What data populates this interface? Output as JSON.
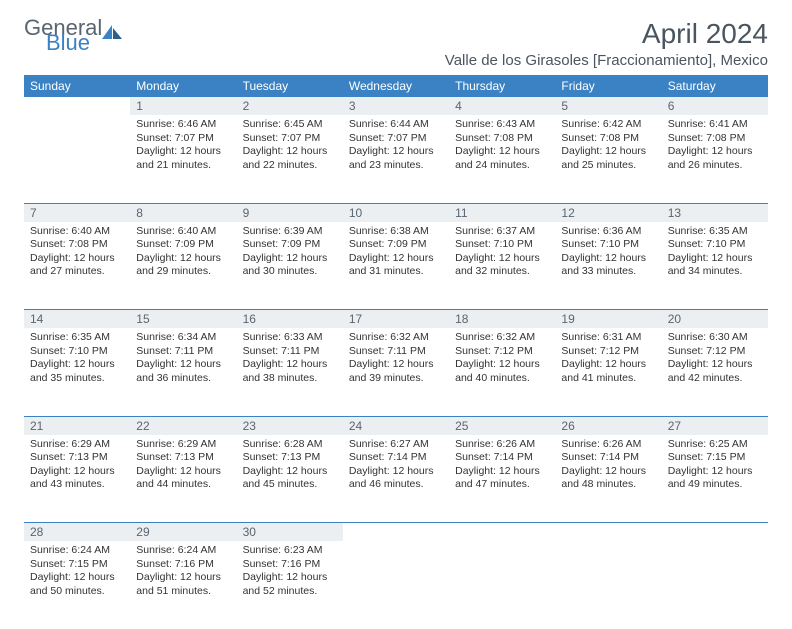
{
  "logo": {
    "text1": "General",
    "text2": "Blue"
  },
  "title": "April 2024",
  "location": "Valle de los Girasoles [Fraccionamiento], Mexico",
  "colors": {
    "header_bg": "#3b82c4",
    "header_text": "#ffffff",
    "daynum_bg": "#eceff1",
    "daynum_text": "#5a6570",
    "body_text": "#333333",
    "title_text": "#4a5560",
    "logo_gray": "#5a6570",
    "logo_blue": "#3b82c4",
    "row_border": "#3b82c4"
  },
  "typography": {
    "title_fontsize": 28,
    "location_fontsize": 15,
    "header_fontsize": 12,
    "daynum_fontsize": 12,
    "cell_fontsize": 10.5
  },
  "weekdays": [
    "Sunday",
    "Monday",
    "Tuesday",
    "Wednesday",
    "Thursday",
    "Friday",
    "Saturday"
  ],
  "weeks": [
    [
      null,
      {
        "day": "1",
        "sunrise": "Sunrise: 6:46 AM",
        "sunset": "Sunset: 7:07 PM",
        "daylight1": "Daylight: 12 hours",
        "daylight2": "and 21 minutes."
      },
      {
        "day": "2",
        "sunrise": "Sunrise: 6:45 AM",
        "sunset": "Sunset: 7:07 PM",
        "daylight1": "Daylight: 12 hours",
        "daylight2": "and 22 minutes."
      },
      {
        "day": "3",
        "sunrise": "Sunrise: 6:44 AM",
        "sunset": "Sunset: 7:07 PM",
        "daylight1": "Daylight: 12 hours",
        "daylight2": "and 23 minutes."
      },
      {
        "day": "4",
        "sunrise": "Sunrise: 6:43 AM",
        "sunset": "Sunset: 7:08 PM",
        "daylight1": "Daylight: 12 hours",
        "daylight2": "and 24 minutes."
      },
      {
        "day": "5",
        "sunrise": "Sunrise: 6:42 AM",
        "sunset": "Sunset: 7:08 PM",
        "daylight1": "Daylight: 12 hours",
        "daylight2": "and 25 minutes."
      },
      {
        "day": "6",
        "sunrise": "Sunrise: 6:41 AM",
        "sunset": "Sunset: 7:08 PM",
        "daylight1": "Daylight: 12 hours",
        "daylight2": "and 26 minutes."
      }
    ],
    [
      {
        "day": "7",
        "sunrise": "Sunrise: 6:40 AM",
        "sunset": "Sunset: 7:08 PM",
        "daylight1": "Daylight: 12 hours",
        "daylight2": "and 27 minutes."
      },
      {
        "day": "8",
        "sunrise": "Sunrise: 6:40 AM",
        "sunset": "Sunset: 7:09 PM",
        "daylight1": "Daylight: 12 hours",
        "daylight2": "and 29 minutes."
      },
      {
        "day": "9",
        "sunrise": "Sunrise: 6:39 AM",
        "sunset": "Sunset: 7:09 PM",
        "daylight1": "Daylight: 12 hours",
        "daylight2": "and 30 minutes."
      },
      {
        "day": "10",
        "sunrise": "Sunrise: 6:38 AM",
        "sunset": "Sunset: 7:09 PM",
        "daylight1": "Daylight: 12 hours",
        "daylight2": "and 31 minutes."
      },
      {
        "day": "11",
        "sunrise": "Sunrise: 6:37 AM",
        "sunset": "Sunset: 7:10 PM",
        "daylight1": "Daylight: 12 hours",
        "daylight2": "and 32 minutes."
      },
      {
        "day": "12",
        "sunrise": "Sunrise: 6:36 AM",
        "sunset": "Sunset: 7:10 PM",
        "daylight1": "Daylight: 12 hours",
        "daylight2": "and 33 minutes."
      },
      {
        "day": "13",
        "sunrise": "Sunrise: 6:35 AM",
        "sunset": "Sunset: 7:10 PM",
        "daylight1": "Daylight: 12 hours",
        "daylight2": "and 34 minutes."
      }
    ],
    [
      {
        "day": "14",
        "sunrise": "Sunrise: 6:35 AM",
        "sunset": "Sunset: 7:10 PM",
        "daylight1": "Daylight: 12 hours",
        "daylight2": "and 35 minutes."
      },
      {
        "day": "15",
        "sunrise": "Sunrise: 6:34 AM",
        "sunset": "Sunset: 7:11 PM",
        "daylight1": "Daylight: 12 hours",
        "daylight2": "and 36 minutes."
      },
      {
        "day": "16",
        "sunrise": "Sunrise: 6:33 AM",
        "sunset": "Sunset: 7:11 PM",
        "daylight1": "Daylight: 12 hours",
        "daylight2": "and 38 minutes."
      },
      {
        "day": "17",
        "sunrise": "Sunrise: 6:32 AM",
        "sunset": "Sunset: 7:11 PM",
        "daylight1": "Daylight: 12 hours",
        "daylight2": "and 39 minutes."
      },
      {
        "day": "18",
        "sunrise": "Sunrise: 6:32 AM",
        "sunset": "Sunset: 7:12 PM",
        "daylight1": "Daylight: 12 hours",
        "daylight2": "and 40 minutes."
      },
      {
        "day": "19",
        "sunrise": "Sunrise: 6:31 AM",
        "sunset": "Sunset: 7:12 PM",
        "daylight1": "Daylight: 12 hours",
        "daylight2": "and 41 minutes."
      },
      {
        "day": "20",
        "sunrise": "Sunrise: 6:30 AM",
        "sunset": "Sunset: 7:12 PM",
        "daylight1": "Daylight: 12 hours",
        "daylight2": "and 42 minutes."
      }
    ],
    [
      {
        "day": "21",
        "sunrise": "Sunrise: 6:29 AM",
        "sunset": "Sunset: 7:13 PM",
        "daylight1": "Daylight: 12 hours",
        "daylight2": "and 43 minutes."
      },
      {
        "day": "22",
        "sunrise": "Sunrise: 6:29 AM",
        "sunset": "Sunset: 7:13 PM",
        "daylight1": "Daylight: 12 hours",
        "daylight2": "and 44 minutes."
      },
      {
        "day": "23",
        "sunrise": "Sunrise: 6:28 AM",
        "sunset": "Sunset: 7:13 PM",
        "daylight1": "Daylight: 12 hours",
        "daylight2": "and 45 minutes."
      },
      {
        "day": "24",
        "sunrise": "Sunrise: 6:27 AM",
        "sunset": "Sunset: 7:14 PM",
        "daylight1": "Daylight: 12 hours",
        "daylight2": "and 46 minutes."
      },
      {
        "day": "25",
        "sunrise": "Sunrise: 6:26 AM",
        "sunset": "Sunset: 7:14 PM",
        "daylight1": "Daylight: 12 hours",
        "daylight2": "and 47 minutes."
      },
      {
        "day": "26",
        "sunrise": "Sunrise: 6:26 AM",
        "sunset": "Sunset: 7:14 PM",
        "daylight1": "Daylight: 12 hours",
        "daylight2": "and 48 minutes."
      },
      {
        "day": "27",
        "sunrise": "Sunrise: 6:25 AM",
        "sunset": "Sunset: 7:15 PM",
        "daylight1": "Daylight: 12 hours",
        "daylight2": "and 49 minutes."
      }
    ],
    [
      {
        "day": "28",
        "sunrise": "Sunrise: 6:24 AM",
        "sunset": "Sunset: 7:15 PM",
        "daylight1": "Daylight: 12 hours",
        "daylight2": "and 50 minutes."
      },
      {
        "day": "29",
        "sunrise": "Sunrise: 6:24 AM",
        "sunset": "Sunset: 7:16 PM",
        "daylight1": "Daylight: 12 hours",
        "daylight2": "and 51 minutes."
      },
      {
        "day": "30",
        "sunrise": "Sunrise: 6:23 AM",
        "sunset": "Sunset: 7:16 PM",
        "daylight1": "Daylight: 12 hours",
        "daylight2": "and 52 minutes."
      },
      null,
      null,
      null,
      null
    ]
  ]
}
